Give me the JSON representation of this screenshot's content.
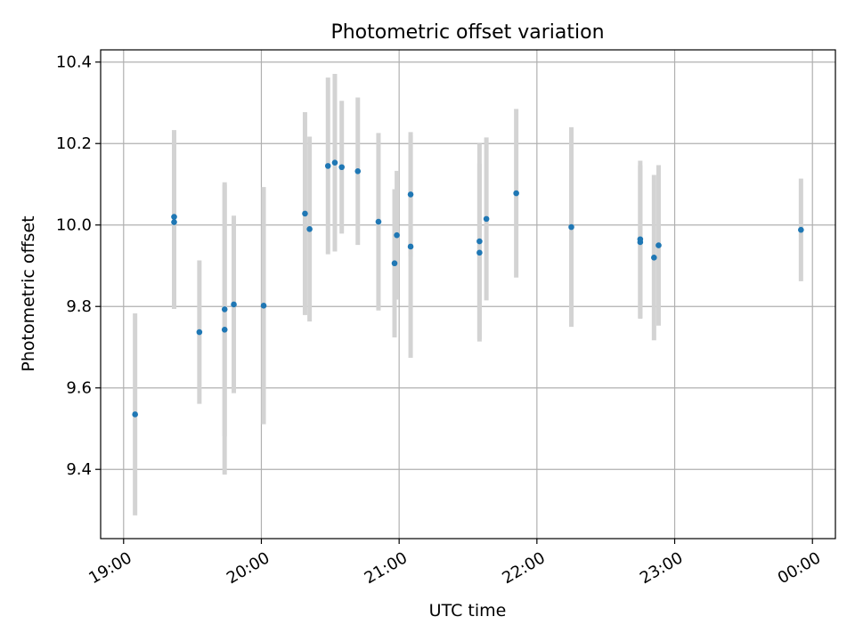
{
  "chart_data": {
    "type": "scatter",
    "title": "Photometric offset variation",
    "xlabel": "UTC time",
    "ylabel": "Photometric offset",
    "x_tick_labels": [
      "19:00",
      "20:00",
      "21:00",
      "22:00",
      "23:00",
      "00:00"
    ],
    "x_ticks": [
      "19:00",
      "20:00",
      "21:00",
      "22:00",
      "23:00",
      "24:00"
    ],
    "xlim": [
      "18:50",
      "24:10"
    ],
    "y_ticks": [
      9.4,
      9.6,
      9.8,
      10.0,
      10.2,
      10.4
    ],
    "y_tick_labels": [
      "9.4",
      "9.6",
      "9.8",
      "10.0",
      "10.2",
      "10.4"
    ],
    "ylim": [
      9.23,
      10.43
    ],
    "grid": true,
    "marker_color": "#1f77b4",
    "errorbar_color": "#d3d3d3",
    "series": [
      {
        "points": [
          {
            "x": "19:05",
            "y": 9.535,
            "err": 0.248
          },
          {
            "x": "19:22",
            "y": 10.02,
            "err": 0.213
          },
          {
            "x": "19:22",
            "y": 10.007,
            "err": 0.213
          },
          {
            "x": "19:33",
            "y": 9.737,
            "err": 0.176
          },
          {
            "x": "19:44",
            "y": 9.793,
            "err": 0.312
          },
          {
            "x": "19:44",
            "y": 9.743,
            "err": 0.356
          },
          {
            "x": "19:48",
            "y": 9.805,
            "err": 0.218
          },
          {
            "x": "20:01",
            "y": 9.802,
            "err": 0.291
          },
          {
            "x": "20:19",
            "y": 10.028,
            "err": 0.249
          },
          {
            "x": "20:21",
            "y": 9.99,
            "err": 0.227
          },
          {
            "x": "20:29",
            "y": 10.145,
            "err": 0.217
          },
          {
            "x": "20:32",
            "y": 10.153,
            "err": 0.218
          },
          {
            "x": "20:35",
            "y": 10.142,
            "err": 0.163
          },
          {
            "x": "20:42",
            "y": 10.132,
            "err": 0.181
          },
          {
            "x": "20:51",
            "y": 10.008,
            "err": 0.218
          },
          {
            "x": "20:58",
            "y": 9.906,
            "err": 0.182
          },
          {
            "x": "20:59",
            "y": 9.975,
            "err": 0.158
          },
          {
            "x": "21:05",
            "y": 10.075,
            "err": 0.153
          },
          {
            "x": "21:05",
            "y": 9.947,
            "err": 0.273
          },
          {
            "x": "21:35",
            "y": 9.96,
            "err": 0.24
          },
          {
            "x": "21:35",
            "y": 9.932,
            "err": 0.218
          },
          {
            "x": "21:38",
            "y": 10.015,
            "err": 0.2
          },
          {
            "x": "21:51",
            "y": 10.078,
            "err": 0.207
          },
          {
            "x": "22:15",
            "y": 9.995,
            "err": 0.245
          },
          {
            "x": "22:45",
            "y": 9.958,
            "err": 0.188
          },
          {
            "x": "22:45",
            "y": 9.965,
            "err": 0.193
          },
          {
            "x": "22:51",
            "y": 9.92,
            "err": 0.203
          },
          {
            "x": "22:53",
            "y": 9.95,
            "err": 0.197
          },
          {
            "x": "23:55",
            "y": 9.988,
            "err": 0.126
          }
        ]
      }
    ]
  }
}
